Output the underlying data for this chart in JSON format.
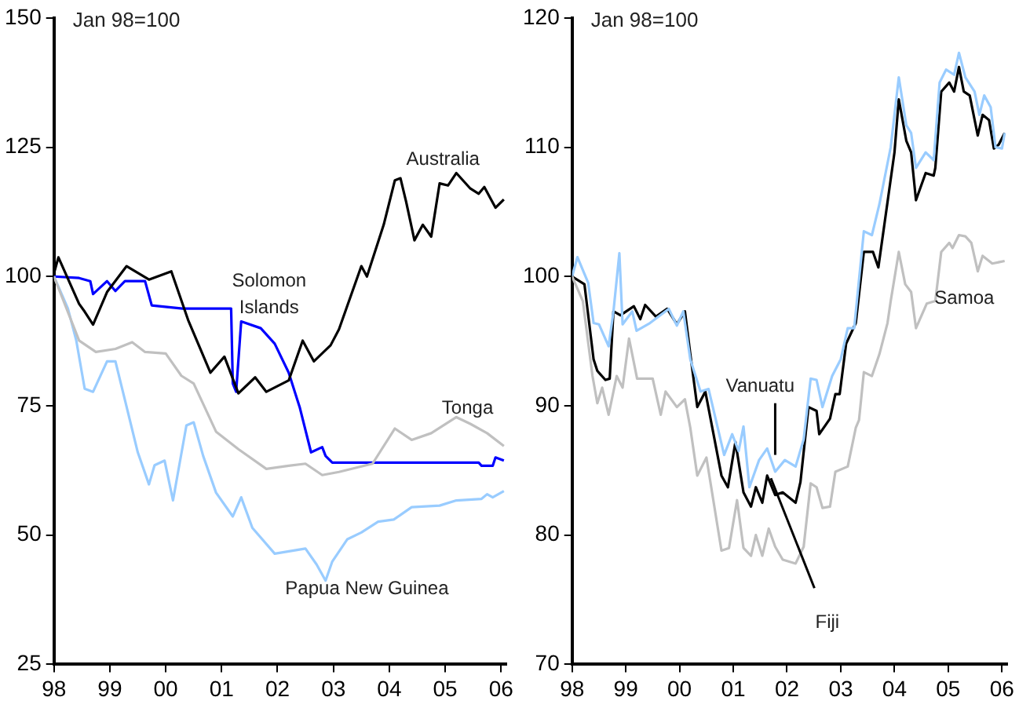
{
  "chart_data": [
    {
      "type": "line",
      "ylabel": "Jan 98=100",
      "xlim": [
        1998,
        2006.1
      ],
      "xticks": [
        {
          "value": 1998,
          "label": "98"
        },
        {
          "value": 1999,
          "label": "99"
        },
        {
          "value": 2000,
          "label": "00"
        },
        {
          "value": 2001,
          "label": "01"
        },
        {
          "value": 2002,
          "label": "02"
        },
        {
          "value": 2003,
          "label": "03"
        },
        {
          "value": 2004,
          "label": "04"
        },
        {
          "value": 2005,
          "label": "05"
        },
        {
          "value": 2006,
          "label": "06"
        }
      ],
      "ylim": [
        25,
        150
      ],
      "yticks": [
        25,
        50,
        75,
        100,
        125,
        150
      ],
      "grid": false,
      "legend": false,
      "marker": "none",
      "line_style": "solid",
      "series": [
        {
          "name": "Tonga",
          "color": "#c0c0c0",
          "x": [
            1998,
            1998.45,
            1998.75,
            1999.1,
            1999.4,
            1999.63,
            2000,
            2000.28,
            2000.5,
            2000.9,
            2001.3,
            2001.8,
            2002.2,
            2002.5,
            2002.8,
            2003.1,
            2003.7,
            2004.1,
            2004.4,
            2004.75,
            2005.2,
            2005.45,
            2005.75,
            2006.05
          ],
          "values": [
            100,
            87.6,
            85.4,
            86,
            87.3,
            85.4,
            85.1,
            80.8,
            79.3,
            70,
            66.6,
            62.8,
            63.4,
            63.8,
            61.6,
            62.2,
            63.8,
            70.6,
            68.4,
            69.7,
            72.8,
            71.5,
            69.7,
            67.2
          ]
        },
        {
          "name": "Papua New Guinea",
          "color": "#99ccff",
          "x": [
            1998,
            1998.25,
            1998.4,
            1998.55,
            1998.7,
            1998.95,
            1999.1,
            1999.5,
            1999.7,
            1999.8,
            1999.98,
            2000.13,
            2000.37,
            2000.5,
            2000.67,
            2000.9,
            2001.2,
            2001.35,
            2001.55,
            2001.95,
            2002.5,
            2002.7,
            2002.86,
            2002.98,
            2003.25,
            2003.5,
            2003.8,
            2004.08,
            2004.4,
            2004.9,
            2005.2,
            2005.65,
            2005.75,
            2005.85,
            2006.05
          ],
          "values": [
            100,
            93.8,
            87.6,
            78.3,
            77.7,
            83.6,
            83.6,
            66,
            59.8,
            63.5,
            64.4,
            56.7,
            71.2,
            71.8,
            65.3,
            58.2,
            53.6,
            57.3,
            51.4,
            46.4,
            47.4,
            44.3,
            41.2,
            44.9,
            49.2,
            50.5,
            52.6,
            53,
            55.4,
            55.7,
            56.7,
            57,
            57.9,
            57.3,
            58.5
          ]
        },
        {
          "name": "Australia",
          "color": "#000000",
          "x": [
            1998,
            1998.08,
            1998.45,
            1998.55,
            1998.7,
            1998.95,
            1999.3,
            1999.7,
            2000.1,
            2000.4,
            2000.8,
            2001.05,
            2001.3,
            2001.6,
            2001.8,
            2002.2,
            2002.45,
            2002.65,
            2002.95,
            2003.1,
            2003.5,
            2003.6,
            2003.9,
            2004.1,
            2004.2,
            2004.3,
            2004.45,
            2004.6,
            2004.75,
            2004.9,
            2005.05,
            2005.2,
            2005.45,
            2005.6,
            2005.7,
            2005.9,
            2006.05
          ],
          "values": [
            100.6,
            103.7,
            94.7,
            93.2,
            90.7,
            97,
            102,
            99.4,
            101,
            91.6,
            81.4,
            84.5,
            77.4,
            80.5,
            77.7,
            79.9,
            87.6,
            83.6,
            86.7,
            89.8,
            102,
            100,
            110,
            118.6,
            119,
            114.5,
            107,
            110,
            107.7,
            118,
            117.6,
            120,
            117,
            116,
            117.3,
            113.3,
            114.9
          ]
        },
        {
          "name": "Solomon Islands",
          "color": "#0000ff",
          "x": [
            1998,
            1998.45,
            1998.65,
            1998.7,
            1998.95,
            1999.1,
            1999.27,
            1999.63,
            1999.75,
            2000.3,
            2001.17,
            2001.2,
            2001.26,
            2001.35,
            2001.7,
            2001.95,
            2002.2,
            2002.4,
            2002.6,
            2002.8,
            2002.86,
            2002.98,
            2005.6,
            2005.65,
            2005.85,
            2005.9,
            2006.05
          ],
          "values": [
            100,
            99.7,
            99.1,
            96.6,
            99.1,
            97.2,
            99.1,
            99.1,
            94.4,
            93.8,
            93.8,
            79.3,
            77.7,
            91.3,
            90,
            87,
            81.4,
            74.6,
            66,
            67,
            65.3,
            64,
            64,
            63.4,
            63.4,
            65,
            64.4
          ]
        }
      ]
    },
    {
      "type": "line",
      "ylabel": "Jan 98=100",
      "xlim": [
        1998,
        2006.1
      ],
      "xticks": [
        {
          "value": 1998,
          "label": "98"
        },
        {
          "value": 1999,
          "label": "99"
        },
        {
          "value": 2000,
          "label": "00"
        },
        {
          "value": 2001,
          "label": "01"
        },
        {
          "value": 2002,
          "label": "02"
        },
        {
          "value": 2003,
          "label": "03"
        },
        {
          "value": 2004,
          "label": "04"
        },
        {
          "value": 2005,
          "label": "05"
        },
        {
          "value": 2006,
          "label": "06"
        }
      ],
      "ylim": [
        70,
        120
      ],
      "yticks": [
        70,
        80,
        90,
        100,
        110,
        120
      ],
      "grid": false,
      "legend": false,
      "marker": "none",
      "line_style": "solid",
      "series": [
        {
          "name": "Samoa",
          "color": "#c0c0c0",
          "x": [
            1998,
            1998.2,
            1998.38,
            1998.47,
            1998.56,
            1998.68,
            1998.83,
            1998.94,
            1999.06,
            1999.21,
            1999.5,
            1999.65,
            1999.74,
            1999.95,
            2000.1,
            2000.2,
            2000.33,
            2000.5,
            2000.78,
            2000.92,
            2001.07,
            2001.19,
            2001.33,
            2001.42,
            2001.54,
            2001.66,
            2001.78,
            2001.92,
            2002.16,
            2002.31,
            2002.44,
            2002.55,
            2002.66,
            2002.8,
            2002.9,
            2003.13,
            2003.28,
            2003.34,
            2003.43,
            2003.58,
            2003.72,
            2003.87,
            2003.93,
            2004.08,
            2004.2,
            2004.31,
            2004.4,
            2004.6,
            2004.76,
            2004.87,
            2005.02,
            2005.08,
            2005.2,
            2005.32,
            2005.43,
            2005.55,
            2005.64,
            2005.82,
            2006.05
          ],
          "values": [
            100,
            98.1,
            92.3,
            90.2,
            91.4,
            89.3,
            92.3,
            91.4,
            95.2,
            92.1,
            92.1,
            89.3,
            91.1,
            89.9,
            90.5,
            88.3,
            84.6,
            86,
            78.8,
            79,
            82.7,
            79,
            78.4,
            80,
            78.4,
            80.5,
            79.1,
            78.1,
            77.8,
            79.1,
            84,
            83.7,
            82.1,
            82.2,
            84.9,
            85.3,
            88.3,
            88.9,
            92.6,
            92.3,
            94,
            96.4,
            98.1,
            101.9,
            99.4,
            98.8,
            96,
            97.9,
            98.1,
            101.9,
            102.6,
            102.2,
            103.2,
            103.1,
            102.6,
            100.4,
            101.6,
            101,
            101.2
          ]
        },
        {
          "name": "Vanuatu",
          "color": "#99ccff",
          "x": [
            1998,
            1998.1,
            1998.3,
            1998.4,
            1998.5,
            1998.68,
            1998.77,
            1998.88,
            1998.94,
            1999.12,
            1999.2,
            1999.45,
            1999.8,
            1999.95,
            2000.07,
            2000.2,
            2000.39,
            2000.54,
            2000.83,
            2000.98,
            2001.1,
            2001.19,
            2001.3,
            2001.48,
            2001.63,
            2001.78,
            2001.96,
            2002.16,
            2002.31,
            2002.44,
            2002.55,
            2002.66,
            2002.84,
            2003,
            2003.13,
            2003.25,
            2003.43,
            2003.58,
            2003.72,
            2003.93,
            2004.08,
            2004.22,
            2004.31,
            2004.4,
            2004.58,
            2004.73,
            2004.84,
            2004.96,
            2005.11,
            2005.2,
            2005.32,
            2005.49,
            2005.58,
            2005.67,
            2005.79,
            2005.88,
            2006,
            2006.05
          ],
          "values": [
            100,
            101.5,
            99.5,
            96.4,
            96.3,
            94.6,
            97.3,
            101.8,
            96.3,
            97.3,
            95.8,
            96.4,
            97.5,
            96.2,
            97.3,
            93.6,
            91.1,
            91.3,
            86.2,
            87.8,
            86.5,
            88.4,
            83.7,
            85.8,
            86.7,
            84.9,
            85.8,
            85.3,
            87.4,
            92.1,
            92,
            89.9,
            92.3,
            93.6,
            96,
            96,
            103.5,
            103.2,
            105.6,
            110,
            115.4,
            111.7,
            111.1,
            108.4,
            109.6,
            109,
            115,
            116,
            115.6,
            117.3,
            115.4,
            114.3,
            112.5,
            114,
            113.1,
            110,
            109.9,
            111.1
          ]
        },
        {
          "name": "Fiji",
          "color": "#000000",
          "x": [
            1998,
            1998.23,
            1998.4,
            1998.47,
            1998.62,
            1998.7,
            1998.77,
            1998.9,
            1999.15,
            1999.27,
            1999.36,
            1999.56,
            1999.77,
            1999.95,
            2000.1,
            2000.2,
            2000.33,
            2000.48,
            2000.78,
            2000.9,
            2001.04,
            2001.19,
            2001.33,
            2001.42,
            2001.54,
            2001.63,
            2001.78,
            2001.92,
            2002.16,
            2002.25,
            2002.4,
            2002.55,
            2002.6,
            2002.8,
            2002.9,
            2002.98,
            2003.1,
            2003.28,
            2003.43,
            2003.6,
            2003.7,
            2004,
            2004.08,
            2004.22,
            2004.31,
            2004.4,
            2004.58,
            2004.73,
            2004.76,
            2004.87,
            2005.02,
            2005.11,
            2005.2,
            2005.29,
            2005.4,
            2005.55,
            2005.64,
            2005.76,
            2005.85,
            2005.94,
            2006.05
          ],
          "values": [
            100,
            99.4,
            93.6,
            92.7,
            92,
            92.1,
            97.3,
            97,
            97.7,
            96.7,
            97.8,
            96.9,
            97.5,
            96.3,
            97.3,
            94,
            89.9,
            91.1,
            84.6,
            83.7,
            87.2,
            83.3,
            82.2,
            83.7,
            82.5,
            84.6,
            83.1,
            83.3,
            82.5,
            84.1,
            89.9,
            89.6,
            87.8,
            89,
            90.9,
            90.9,
            94.8,
            96.4,
            101.9,
            101.9,
            100.7,
            109.6,
            113.7,
            110.5,
            109.6,
            105.9,
            108,
            107.8,
            108.4,
            114.3,
            115,
            114.3,
            116.2,
            114.3,
            114,
            110.9,
            112.5,
            112.1,
            109.9,
            110.2,
            111.1
          ]
        }
      ]
    }
  ]
}
